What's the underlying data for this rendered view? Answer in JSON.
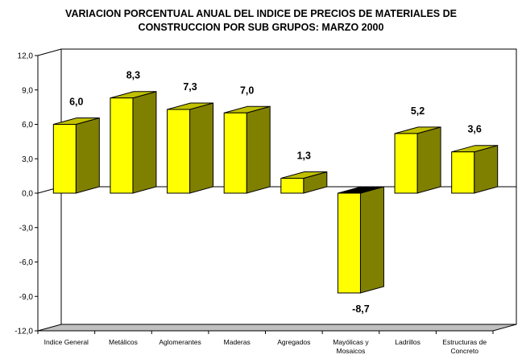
{
  "chart_data": {
    "type": "bar",
    "title": "VARIACION PORCENTUAL ANUAL DEL INDICE DE PRECIOS DE MATERIALES DE CONSTRUCCION POR SUB GRUPOS: MARZO 2000",
    "title_lines": [
      "VARIACION PORCENTUAL ANUAL DEL INDICE DE PRECIOS DE MATERIALES DE",
      "CONSTRUCCION POR SUB GRUPOS: MARZO 2000"
    ],
    "categories": [
      [
        "Indice General"
      ],
      [
        "Metálicos"
      ],
      [
        "Aglomerantes"
      ],
      [
        "Maderas"
      ],
      [
        "Agregados"
      ],
      [
        "Mayólicas y",
        "Mosaicos"
      ],
      [
        "Ladrillos"
      ],
      [
        "Estructuras de",
        "Concreto"
      ]
    ],
    "values": [
      6.0,
      8.3,
      7.3,
      7.0,
      1.3,
      -8.7,
      5.2,
      3.6
    ],
    "data_labels": [
      "6,0",
      "8,3",
      "7,3",
      "7,0",
      "1,3",
      "-8,7",
      "5,2",
      "3,6"
    ],
    "y_ticks": [
      12,
      9,
      6,
      3,
      0,
      -3,
      -6,
      -9,
      -12
    ],
    "y_tick_labels": [
      "12,0",
      "9,0",
      "6,0",
      "3,0",
      "0,0",
      "-3,0",
      "-6,0",
      "-9,0",
      "-12,0"
    ],
    "xlabel": "",
    "ylabel": "",
    "ylim": [
      -12,
      12
    ],
    "grid": false,
    "legend": "none",
    "colors": {
      "bar_front": "#ffff00",
      "bar_side": "#808000",
      "bar_top": "#c0c000",
      "negative_top": "#000000",
      "floor": "#c0c0c0",
      "axis": "#000000"
    }
  }
}
